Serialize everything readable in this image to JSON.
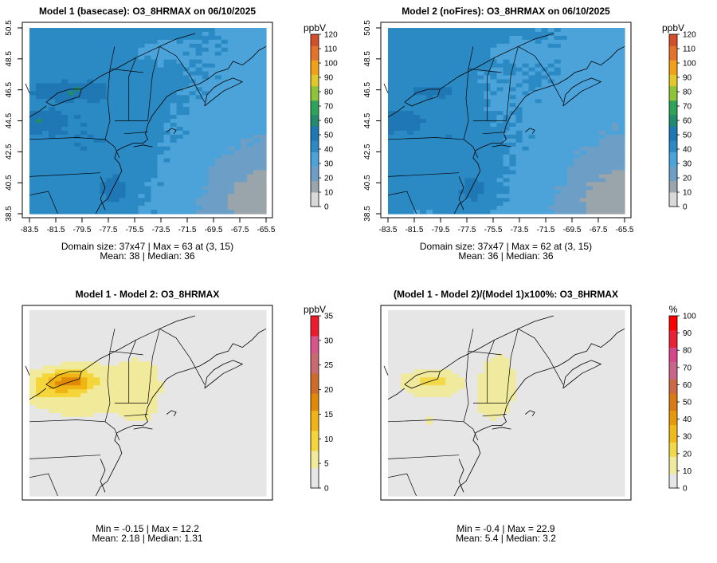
{
  "chart_data": [
    {
      "type": "heatmap",
      "title": "Model 1 (basecase): O3_8HRMAX on 06/10/2025",
      "unit": "ppbV",
      "xticks": [
        "-83.5",
        "-81.5",
        "-79.5",
        "-77.5",
        "-75.5",
        "-73.5",
        "-71.5",
        "-69.5",
        "-67.5",
        "-65.5"
      ],
      "yticks": [
        "38.5",
        "40.5",
        "42.5",
        "44.5",
        "46.5",
        "48.5",
        "50.5"
      ],
      "colorbar_ticks": [
        "0",
        "10",
        "20",
        "30",
        "40",
        "50",
        "60",
        "70",
        "80",
        "90",
        "100",
        "110",
        "120"
      ],
      "colorbar_range": [
        0,
        120
      ],
      "stats_line1": "Domain size: 37x47 | Max = 63 at (3, 15)",
      "stats_line2": "Mean: 38 |  Median: 36",
      "stats": {
        "max": 63,
        "mean": 38,
        "median": 36
      }
    },
    {
      "type": "heatmap",
      "title": "Model 2 (noFires): O3_8HRMAX on 06/10/2025",
      "unit": "ppbV",
      "xticks": [
        "-83.5",
        "-81.5",
        "-79.5",
        "-77.5",
        "-75.5",
        "-73.5",
        "-71.5",
        "-69.5",
        "-67.5",
        "-65.5"
      ],
      "yticks": [
        "38.5",
        "40.5",
        "42.5",
        "44.5",
        "46.5",
        "48.5",
        "50.5"
      ],
      "colorbar_ticks": [
        "0",
        "10",
        "20",
        "30",
        "40",
        "50",
        "60",
        "70",
        "80",
        "90",
        "100",
        "110",
        "120"
      ],
      "colorbar_range": [
        0,
        120
      ],
      "stats_line1": "Domain size: 37x47 | Max = 62 at (3, 15)",
      "stats_line2": "Mean: 36 |  Median: 36",
      "stats": {
        "max": 62,
        "mean": 36,
        "median": 36
      }
    },
    {
      "type": "heatmap",
      "title": "Model 1 - Model 2: O3_8HRMAX",
      "unit": "ppbV",
      "colorbar_ticks": [
        "0",
        "5",
        "10",
        "15",
        "20",
        "25",
        "30",
        "35"
      ],
      "colorbar_range": [
        0,
        35
      ],
      "stats_line1": "Min = -0.15 | Max = 12.2",
      "stats_line2": "Mean: 2.18 |  Median: 1.31",
      "stats": {
        "min": -0.15,
        "max": 12.2,
        "mean": 2.18,
        "median": 1.31
      }
    },
    {
      "type": "heatmap",
      "title": "(Model 1 - Model 2)/(Model 1)x100%: O3_8HRMAX",
      "unit": "%",
      "colorbar_ticks": [
        "0",
        "10",
        "20",
        "30",
        "40",
        "50",
        "60",
        "70",
        "80",
        "90",
        "100"
      ],
      "colorbar_range": [
        0,
        100
      ],
      "stats_line1": "Min = -0.4 | Max = 22.9",
      "stats_line2": "Mean: 5.4 |  Median: 3.2",
      "stats": {
        "min": -0.4,
        "max": 22.9,
        "mean": 5.4,
        "median": 3.2
      }
    }
  ],
  "colors": {
    "ozone_scale": [
      "#d9d9d9",
      "#9aa4ab",
      "#6d9fc6",
      "#4ba3d9",
      "#2b8ac3",
      "#1f77b4",
      "#228b6e",
      "#2ea35a",
      "#8fc43a",
      "#e0c928",
      "#f2a017",
      "#e3732a",
      "#d1502b",
      "#e8141f"
    ],
    "diff_scale": [
      "#e6e6e6",
      "#f1ea9a",
      "#f4d63b",
      "#f0b514",
      "#e08a08",
      "#cf6b2a",
      "#c96a70",
      "#d6558a",
      "#ee1b2a"
    ],
    "pct_scale": [
      "#e6e6e6",
      "#f0ea9e",
      "#f2d94a",
      "#f0bb18",
      "#e7990c",
      "#d97a14",
      "#cb6a44",
      "#c9658a",
      "#d4488a",
      "#e82235",
      "#ff0000"
    ]
  }
}
